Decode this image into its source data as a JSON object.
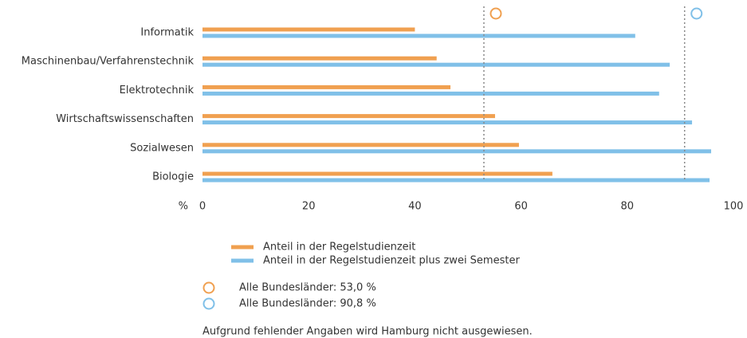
{
  "chart_data": {
    "type": "bar",
    "orientation": "horizontal",
    "categories": [
      "Informatik",
      "Maschinenbau/Verfahrenstechnik",
      "Elektrotechnik",
      "Wirtschaftswissenschaften",
      "Sozialwesen",
      "Biologie"
    ],
    "series": [
      {
        "name": "Anteil in der Regelstudienzeit",
        "color": "#f0a050",
        "values": [
          40,
          44.1,
          46.7,
          55.1,
          59.6,
          65.9
        ]
      },
      {
        "name": "Anteil in der Regelstudienzeit plus zwei Semester",
        "color": "#80c0e8",
        "values": [
          81.5,
          88,
          86,
          92.2,
          95.8,
          95.5
        ]
      }
    ],
    "reference_lines": [
      {
        "value": 53.0,
        "label": "Alle Bundesländer: 53,0 %",
        "color": "#f0a050"
      },
      {
        "value": 90.8,
        "label": "Alle Bundesländer: 90,8 %",
        "color": "#80c0e8"
      }
    ],
    "x_axis_label": "%",
    "xlim": [
      0,
      100
    ],
    "xticks": [
      0,
      20,
      40,
      60,
      80,
      100
    ],
    "footnote": "Aufgrund fehlender Angaben wird Hamburg nicht ausgewiesen."
  }
}
